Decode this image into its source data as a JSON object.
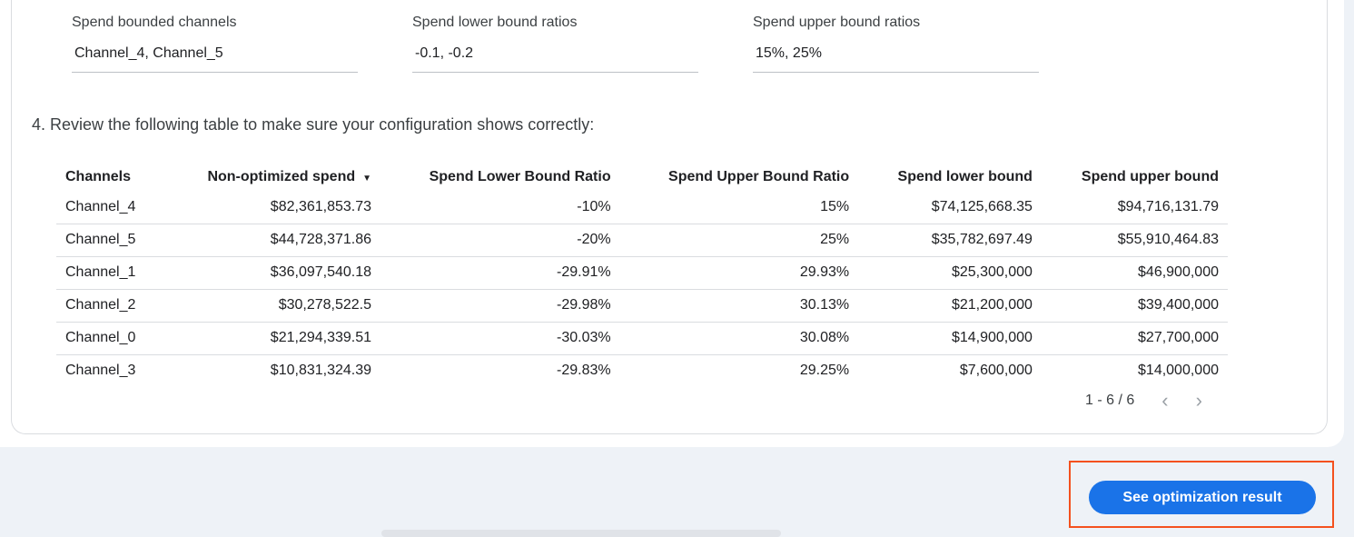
{
  "fields": [
    {
      "label": "Spend bounded channels",
      "value": "Channel_4, Channel_5"
    },
    {
      "label": "Spend lower bound ratios",
      "value": "-0.1, -0.2"
    },
    {
      "label": "Spend upper bound ratios",
      "value": "15%, 25%"
    }
  ],
  "step_text": "4. Review the following table to make sure your configuration shows correctly:",
  "table": {
    "headers": [
      "Channels",
      "Non-optimized spend",
      "Spend Lower Bound Ratio",
      "Spend Upper Bound Ratio",
      "Spend lower bound",
      "Spend upper bound"
    ],
    "sort_indicator": "▼",
    "rows": [
      [
        "Channel_4",
        "$82,361,853.73",
        "-10%",
        "15%",
        "$74,125,668.35",
        "$94,716,131.79"
      ],
      [
        "Channel_5",
        "$44,728,371.86",
        "-20%",
        "25%",
        "$35,782,697.49",
        "$55,910,464.83"
      ],
      [
        "Channel_1",
        "$36,097,540.18",
        "-29.91%",
        "29.93%",
        "$25,300,000",
        "$46,900,000"
      ],
      [
        "Channel_2",
        "$30,278,522.5",
        "-29.98%",
        "30.13%",
        "$21,200,000",
        "$39,400,000"
      ],
      [
        "Channel_0",
        "$21,294,339.51",
        "-30.03%",
        "30.08%",
        "$14,900,000",
        "$27,700,000"
      ],
      [
        "Channel_3",
        "$10,831,324.39",
        "-29.83%",
        "29.25%",
        "$7,600,000",
        "$14,000,000"
      ]
    ]
  },
  "pager": {
    "text": "1 - 6 / 6",
    "prev": "‹",
    "next": "›"
  },
  "button": {
    "label": "See optimization result",
    "color": "#1a73e8"
  },
  "highlight_color": "#f4511e"
}
